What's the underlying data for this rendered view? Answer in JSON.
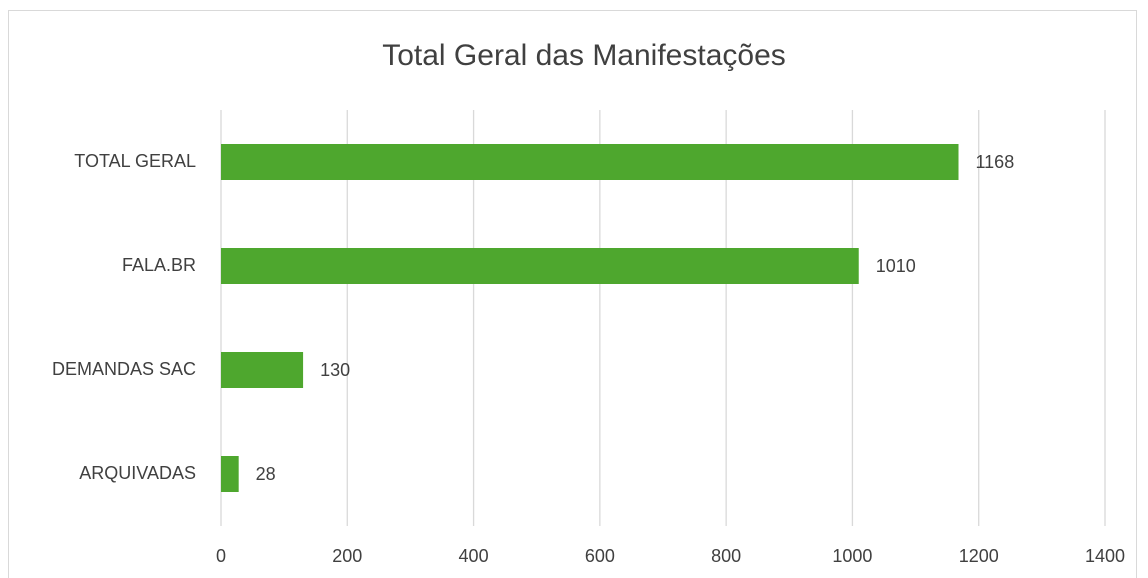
{
  "chart_data": {
    "type": "hbar",
    "title": "Total Geral das Manifestações",
    "categories": [
      "TOTAL GERAL",
      "FALA.BR",
      "DEMANDAS SAC",
      "ARQUIVADAS"
    ],
    "values": [
      1168,
      1010,
      130,
      28
    ],
    "color": "#4ea72e",
    "xlim": [
      0,
      1400
    ],
    "xticks": [
      0,
      200,
      400,
      600,
      800,
      1000,
      1200,
      1400
    ],
    "grid": true
  }
}
